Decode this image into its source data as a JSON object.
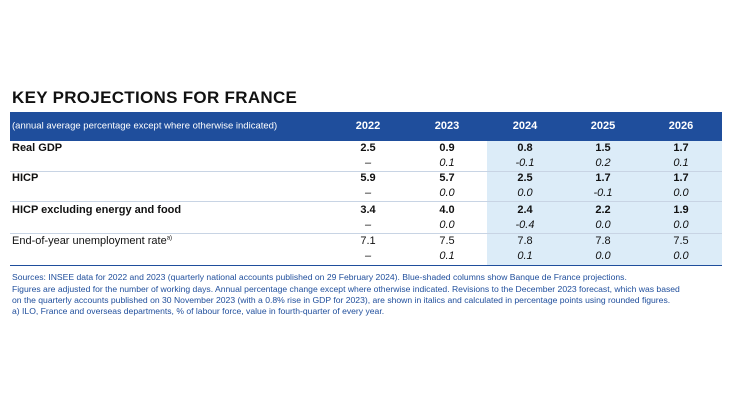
{
  "title": "KEY PROJECTIONS FOR FRANCE",
  "table": {
    "header": [
      "(annual average percentage except where otherwise indicated)",
      "2022",
      "2023",
      "2024",
      "2025",
      "2026"
    ],
    "groups": [
      {
        "label": "Real GDP",
        "bold": true,
        "values": [
          "2.5",
          "0.9",
          "0.8",
          "1.5",
          "1.7"
        ],
        "revisions": [
          "–",
          "0.1",
          "-0.1",
          "0.2",
          "0.1"
        ]
      },
      {
        "label": "HICP",
        "bold": true,
        "values": [
          "5.9",
          "5.7",
          "2.5",
          "1.7",
          "1.7"
        ],
        "revisions": [
          "–",
          "0.0",
          "0.0",
          "-0.1",
          "0.0"
        ]
      },
      {
        "label": "HICP excluding energy and food",
        "bold": true,
        "values": [
          "3.4",
          "4.0",
          "2.4",
          "2.2",
          "1.9"
        ],
        "revisions": [
          "–",
          "0.0",
          "-0.4",
          "0.0",
          "0.0"
        ]
      },
      {
        "label": "End-of-year unemployment rate",
        "note": "a)",
        "bold": false,
        "values": [
          "7.1",
          "7.5",
          "7.8",
          "7.8",
          "7.5"
        ],
        "revisions": [
          "–",
          "0.1",
          "0.1",
          "0.0",
          "0.0"
        ]
      }
    ]
  },
  "notes": [
    "Sources: INSEE data for 2022 and 2023 (quarterly national accounts published on 29 February 2024). Blue-shaded columns show Banque de France projections.",
    "Figures are adjusted for the number of working days. Annual percentage change except where otherwise indicated. Revisions to the December 2023 forecast, which was based",
    "on the quarterly accounts published on 30 November 2023 (with a 0.8% rise in GDP for 2023), are shown in italics and calculated in percentage points using rounded figures.",
    "a)  ILO, France and overseas departments, % of labour force, value in fourth-quarter of every year."
  ]
}
